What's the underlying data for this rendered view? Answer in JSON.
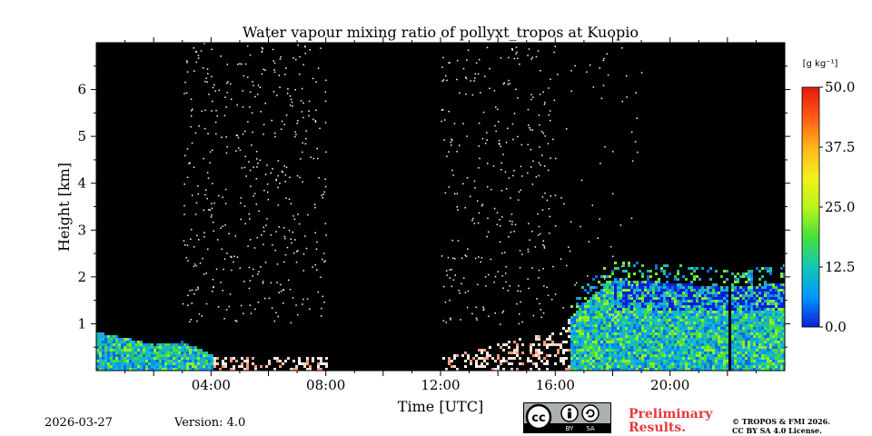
{
  "chart_data": {
    "type": "heatmap",
    "title": "Water vapour mixing ratio of pollyxt_tropos at Kuopio",
    "xlabel": "Time [UTC]",
    "ylabel": "Height [km]",
    "xlim_hours": [
      0,
      24
    ],
    "ylim_km": [
      0,
      7
    ],
    "x_ticks": [
      {
        "hour": 4,
        "label": "04:00"
      },
      {
        "hour": 8,
        "label": "08:00"
      },
      {
        "hour": 12,
        "label": "12:00"
      },
      {
        "hour": 16,
        "label": "16:00"
      },
      {
        "hour": 20,
        "label": "20:00"
      }
    ],
    "y_ticks": [
      {
        "km": 1,
        "label": "1"
      },
      {
        "km": 2,
        "label": "2"
      },
      {
        "km": 3,
        "label": "3"
      },
      {
        "km": 4,
        "label": "4"
      },
      {
        "km": 5,
        "label": "5"
      },
      {
        "km": 6,
        "label": "6"
      }
    ],
    "colorbar": {
      "unit": "[g kg⁻¹]",
      "range": [
        0.0,
        50.0
      ],
      "ticks": [
        "0.0",
        "12.5",
        "25.0",
        "37.5",
        "50.0"
      ],
      "colors": [
        "#0b1fd6",
        "#0097ff",
        "#12c8b6",
        "#46e03a",
        "#b9f51b",
        "#f3f01b",
        "#ffb51a",
        "#ff5a14",
        "#e8180e"
      ]
    },
    "no_data_gaps_hours": [
      [
        8.0,
        12.0
      ],
      [
        14.85,
        15.0
      ],
      [
        21.95,
        22.1
      ]
    ],
    "surface_layer_top_km": [
      {
        "hour": 0.0,
        "km": 0.85
      },
      {
        "hour": 1.0,
        "km": 0.72
      },
      {
        "hour": 2.0,
        "km": 0.58
      },
      {
        "hour": 3.0,
        "km": 0.65
      },
      {
        "hour": 4.0,
        "km": 0.35
      },
      {
        "hour": 6.0,
        "km": 0.3
      },
      {
        "hour": 8.0,
        "km": 0.3
      },
      {
        "hour": 12.0,
        "km": 0.3
      },
      {
        "hour": 16.0,
        "km": 0.9
      },
      {
        "hour": 17.2,
        "km": 1.6
      },
      {
        "hour": 18.0,
        "km": 2.0
      },
      {
        "hour": 20.0,
        "km": 1.9
      },
      {
        "hour": 22.0,
        "km": 1.8
      },
      {
        "hour": 24.0,
        "km": 1.9
      }
    ]
  },
  "footer": {
    "date": "2026-03-27",
    "version": "Version: 4.0",
    "preliminary_line1": "Preliminary",
    "preliminary_line2": "Results.",
    "copyright_line1": "© TROPOS & FMI 2026.",
    "copyright_line2": "CC BY SA 4.0 License.",
    "license_badge": {
      "cc": "cc",
      "by": "BY",
      "sa": "SA"
    }
  }
}
